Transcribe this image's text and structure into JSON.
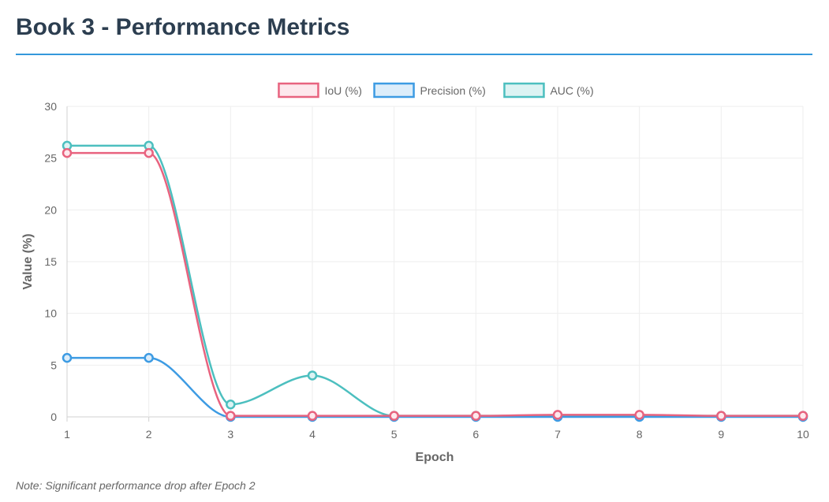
{
  "page": {
    "title": "Book 3 - Performance Metrics",
    "note": "Note: Significant performance drop after Epoch 2"
  },
  "colors": {
    "title": "#2c3e50",
    "rule": "#3498db",
    "grid": "#eeeeee",
    "axis_text": "#666666"
  },
  "chart_data": {
    "type": "line",
    "title": "",
    "xlabel": "Epoch",
    "ylabel": "Value (%)",
    "x": [
      1,
      2,
      3,
      4,
      5,
      6,
      7,
      8,
      9,
      10
    ],
    "ylim": [
      0,
      30
    ],
    "yticks": [
      0,
      5,
      10,
      15,
      20,
      25,
      30
    ],
    "grid": true,
    "legend_position": "top",
    "series": [
      {
        "name": "IoU (%)",
        "color": "#e8637f",
        "fill": "#fde8ed",
        "values": [
          25.5,
          25.5,
          0.1,
          0.1,
          0.1,
          0.1,
          0.2,
          0.2,
          0.1,
          0.1
        ]
      },
      {
        "name": "Precision (%)",
        "color": "#3d9be3",
        "fill": "#dcedfa",
        "values": [
          5.7,
          5.7,
          0.0,
          0.0,
          0.0,
          0.0,
          0.0,
          0.0,
          0.0,
          0.0
        ]
      },
      {
        "name": "AUC (%)",
        "color": "#4cbfbf",
        "fill": "#dcf3f3",
        "values": [
          26.2,
          26.2,
          1.2,
          4.0,
          0.1,
          0.1,
          0.1,
          0.1,
          0.1,
          0.1
        ]
      }
    ]
  }
}
